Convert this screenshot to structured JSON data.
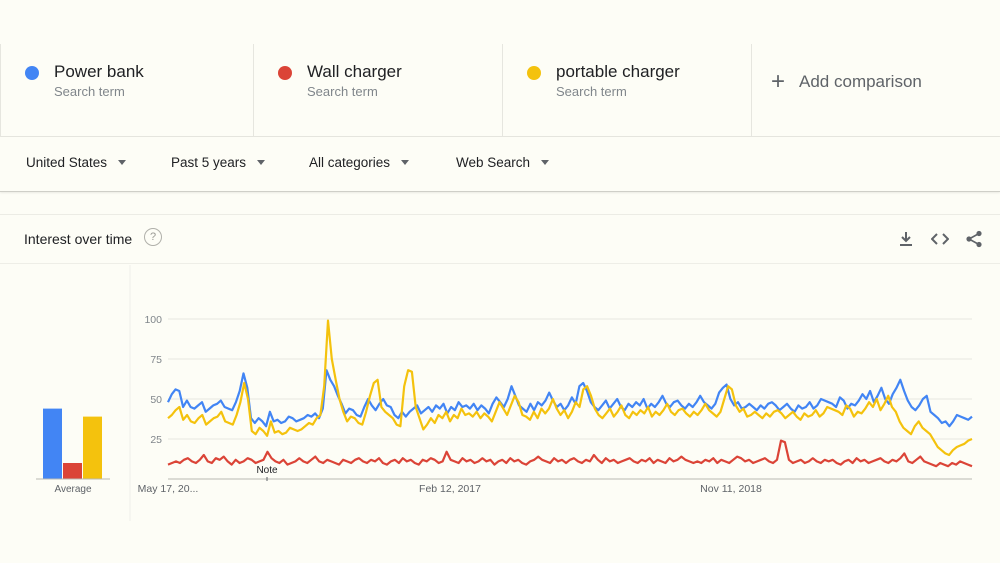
{
  "terms": [
    {
      "name": "Power bank",
      "sub": "Search term",
      "color": "#4285f4"
    },
    {
      "name": "Wall charger",
      "sub": "Search term",
      "color": "#db4437"
    },
    {
      "name": "portable charger",
      "sub": "Search term",
      "color": "#f4c20d"
    }
  ],
  "add_comparison": "Add comparison",
  "filters": {
    "region": "United States",
    "period": "Past 5 years",
    "category": "All categories",
    "search_type": "Web Search"
  },
  "card": {
    "title": "Interest over time",
    "help_icon": "question-circle-icon",
    "actions": [
      "download-icon",
      "embed-code-icon",
      "share-icon"
    ]
  },
  "chart_data": {
    "type": "line",
    "ylim": [
      0,
      100
    ],
    "y_ticks": [
      "100",
      "75",
      "50",
      "25"
    ],
    "x_tick_labels": [
      "May 17, 20...",
      "Feb 12, 2017",
      "Nov 11, 2018"
    ],
    "note_label": "Note",
    "average_label": "Average",
    "averages": [
      44,
      10,
      39
    ],
    "series": [
      {
        "name": "Power bank",
        "color": "#4285f4",
        "values": [
          48,
          53,
          56,
          55,
          45,
          49,
          45,
          44,
          46,
          48,
          42,
          44,
          46,
          47,
          49,
          45,
          44,
          43,
          48,
          55,
          66,
          57,
          38,
          35,
          38,
          36,
          33,
          42,
          36,
          37,
          35,
          36,
          39,
          38,
          36,
          37,
          38,
          40,
          39,
          41,
          38,
          44,
          68,
          62,
          58,
          52,
          47,
          41,
          44,
          43,
          40,
          39,
          45,
          50,
          46,
          43,
          47,
          50,
          46,
          45,
          40,
          38,
          42,
          39,
          42,
          44,
          46,
          41,
          43,
          45,
          42,
          46,
          44,
          47,
          41,
          45,
          43,
          48,
          45,
          46,
          44,
          47,
          43,
          46,
          44,
          41,
          47,
          51,
          48,
          45,
          50,
          58,
          52,
          46,
          44,
          42,
          47,
          43,
          48,
          46,
          49,
          54,
          49,
          45,
          47,
          43,
          46,
          51,
          47,
          58,
          60,
          55,
          48,
          45,
          43,
          46,
          49,
          44,
          47,
          50,
          45,
          43,
          47,
          45,
          48,
          46,
          50,
          44,
          47,
          45,
          48,
          52,
          47,
          45,
          48,
          49,
          46,
          44,
          47,
          45,
          48,
          52,
          48,
          46,
          44,
          47,
          54,
          57,
          59,
          50,
          46,
          48,
          44,
          45,
          47,
          45,
          43,
          46,
          44,
          47,
          48,
          46,
          43,
          45,
          47,
          44,
          42,
          46,
          44,
          45,
          48,
          44,
          46,
          50,
          49,
          48,
          47,
          45,
          51,
          49,
          44,
          47,
          46,
          49,
          53,
          50,
          55,
          48,
          52,
          57,
          50,
          47,
          53,
          57,
          62,
          55,
          49,
          45,
          43,
          46,
          50,
          52,
          42,
          40,
          38,
          35,
          36,
          33,
          36,
          40,
          39,
          38,
          37,
          39
        ]
      },
      {
        "name": "Wall charger",
        "color": "#db4437",
        "values": [
          9,
          10,
          11,
          10,
          12,
          13,
          11,
          10,
          12,
          15,
          11,
          10,
          13,
          12,
          14,
          11,
          9,
          12,
          10,
          11,
          13,
          12,
          10,
          11,
          12,
          17,
          13,
          11,
          10,
          12,
          9,
          10,
          11,
          13,
          11,
          10,
          12,
          14,
          11,
          10,
          12,
          11,
          10,
          9,
          12,
          11,
          10,
          12,
          13,
          11,
          10,
          12,
          11,
          13,
          10,
          9,
          11,
          12,
          10,
          13,
          11,
          12,
          10,
          9,
          12,
          11,
          13,
          12,
          10,
          11,
          17,
          12,
          11,
          10,
          13,
          11,
          12,
          10,
          11,
          13,
          11,
          12,
          9,
          11,
          12,
          10,
          13,
          11,
          12,
          10,
          9,
          11,
          12,
          14,
          12,
          11,
          10,
          13,
          11,
          12,
          10,
          12,
          13,
          11,
          10,
          12,
          11,
          15,
          12,
          10,
          13,
          11,
          12,
          10,
          11,
          12,
          13,
          11,
          10,
          12,
          11,
          13,
          10,
          12,
          11,
          10,
          13,
          11,
          12,
          14,
          12,
          11,
          10,
          11,
          10,
          12,
          11,
          13,
          10,
          12,
          11,
          10,
          12,
          14,
          13,
          11,
          12,
          10,
          11,
          12,
          13,
          11,
          10,
          12,
          24,
          23,
          12,
          10,
          11,
          12,
          10,
          11,
          13,
          11,
          10,
          12,
          11,
          12,
          10,
          9,
          11,
          12,
          10,
          13,
          11,
          12,
          10,
          11,
          12,
          13,
          11,
          10,
          12,
          11,
          13,
          16,
          11,
          10,
          12,
          14,
          11,
          10,
          9,
          8,
          10,
          9,
          8,
          10,
          9,
          11,
          10,
          9,
          8
        ]
      },
      {
        "name": "portable charger",
        "color": "#f4c20d",
        "values": [
          38,
          40,
          43,
          45,
          37,
          40,
          36,
          35,
          38,
          40,
          34,
          36,
          38,
          39,
          42,
          36,
          35,
          34,
          40,
          48,
          60,
          50,
          30,
          28,
          32,
          30,
          27,
          36,
          29,
          30,
          28,
          29,
          32,
          31,
          30,
          31,
          33,
          35,
          34,
          38,
          40,
          58,
          99,
          75,
          62,
          50,
          42,
          36,
          39,
          38,
          35,
          34,
          42,
          52,
          60,
          62,
          45,
          42,
          40,
          38,
          34,
          33,
          58,
          68,
          67,
          45,
          38,
          31,
          34,
          38,
          35,
          40,
          38,
          42,
          36,
          40,
          38,
          44,
          40,
          41,
          39,
          42,
          38,
          41,
          39,
          36,
          42,
          48,
          44,
          40,
          46,
          52,
          48,
          40,
          39,
          37,
          42,
          38,
          44,
          41,
          44,
          50,
          44,
          40,
          43,
          38,
          42,
          48,
          45,
          56,
          58,
          52,
          44,
          40,
          38,
          41,
          44,
          39,
          42,
          46,
          40,
          38,
          42,
          40,
          43,
          41,
          45,
          39,
          42,
          40,
          43,
          47,
          42,
          40,
          43,
          44,
          41,
          39,
          42,
          40,
          43,
          47,
          43,
          41,
          39,
          42,
          50,
          58,
          56,
          46,
          42,
          44,
          39,
          40,
          42,
          40,
          38,
          41,
          39,
          42,
          43,
          41,
          38,
          40,
          42,
          39,
          37,
          41,
          39,
          40,
          43,
          39,
          41,
          45,
          44,
          43,
          42,
          40,
          46,
          44,
          39,
          42,
          41,
          44,
          48,
          45,
          50,
          43,
          47,
          52,
          45,
          42,
          36,
          32,
          30,
          28,
          33,
          36,
          32,
          30,
          28,
          24,
          20,
          18,
          16,
          15,
          18,
          20,
          21,
          22,
          24,
          25
        ]
      }
    ]
  }
}
